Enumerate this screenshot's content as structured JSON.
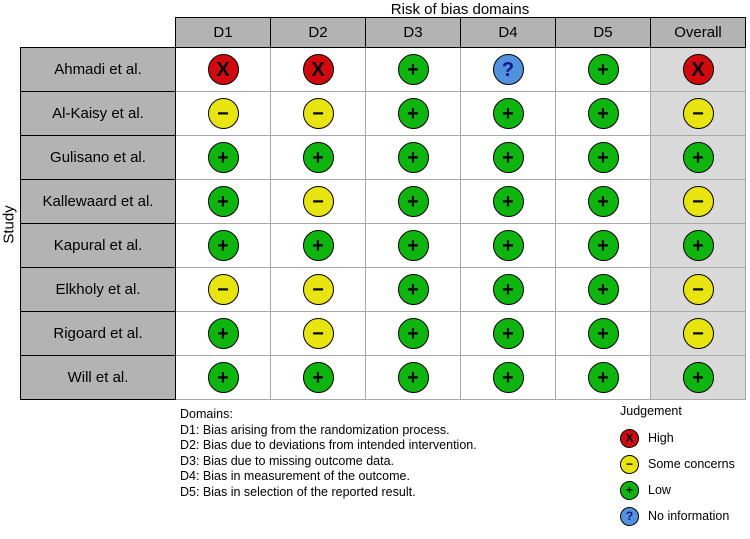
{
  "title": "Risk of bias domains",
  "y_axis_label": "Study",
  "domains_legend": {
    "title": "Domains:",
    "items": [
      "D1: Bias arising from the randomization process.",
      "D2: Bias due to deviations from intended intervention.",
      "D3: Bias due to missing outcome data.",
      "D4: Bias in measurement of the outcome.",
      "D5: Bias in selection of the reported result."
    ]
  },
  "judgement_legend": {
    "title": "Judgement",
    "items": [
      {
        "key": "high",
        "label": "High",
        "symbol": "X",
        "color": "#d10a10",
        "symbol_color": "#000000"
      },
      {
        "key": "some",
        "label": "Some concerns",
        "symbol": "−",
        "color": "#e8e410",
        "symbol_color": "#000000"
      },
      {
        "key": "low",
        "label": "Low",
        "symbol": "+",
        "color": "#0fb50f",
        "symbol_color": "#000000"
      },
      {
        "key": "noinfo",
        "label": "No information",
        "symbol": "?",
        "color": "#5291dc",
        "symbol_color": "#14148c"
      }
    ]
  },
  "chart_data": {
    "type": "table",
    "title": "Risk of bias domains",
    "columns": [
      "D1",
      "D2",
      "D3",
      "D4",
      "D5",
      "Overall"
    ],
    "rows": [
      {
        "study": "Ahmadi et al.",
        "judgements": [
          "high",
          "high",
          "low",
          "noinfo",
          "low",
          "high"
        ]
      },
      {
        "study": "Al-Kaisy et al.",
        "judgements": [
          "some",
          "some",
          "low",
          "low",
          "low",
          "some"
        ]
      },
      {
        "study": "Gulisano et al.",
        "judgements": [
          "low",
          "low",
          "low",
          "low",
          "low",
          "low"
        ]
      },
      {
        "study": "Kallewaard et al.",
        "judgements": [
          "low",
          "some",
          "low",
          "low",
          "low",
          "some"
        ]
      },
      {
        "study": "Kapural et al.",
        "judgements": [
          "low",
          "low",
          "low",
          "low",
          "low",
          "low"
        ]
      },
      {
        "study": "Elkholy et al.",
        "judgements": [
          "some",
          "some",
          "low",
          "low",
          "low",
          "some"
        ]
      },
      {
        "study": "Rigoard et al.",
        "judgements": [
          "low",
          "some",
          "low",
          "low",
          "low",
          "some"
        ]
      },
      {
        "study": "Will et al.",
        "judgements": [
          "low",
          "low",
          "low",
          "low",
          "low",
          "low"
        ]
      }
    ]
  }
}
